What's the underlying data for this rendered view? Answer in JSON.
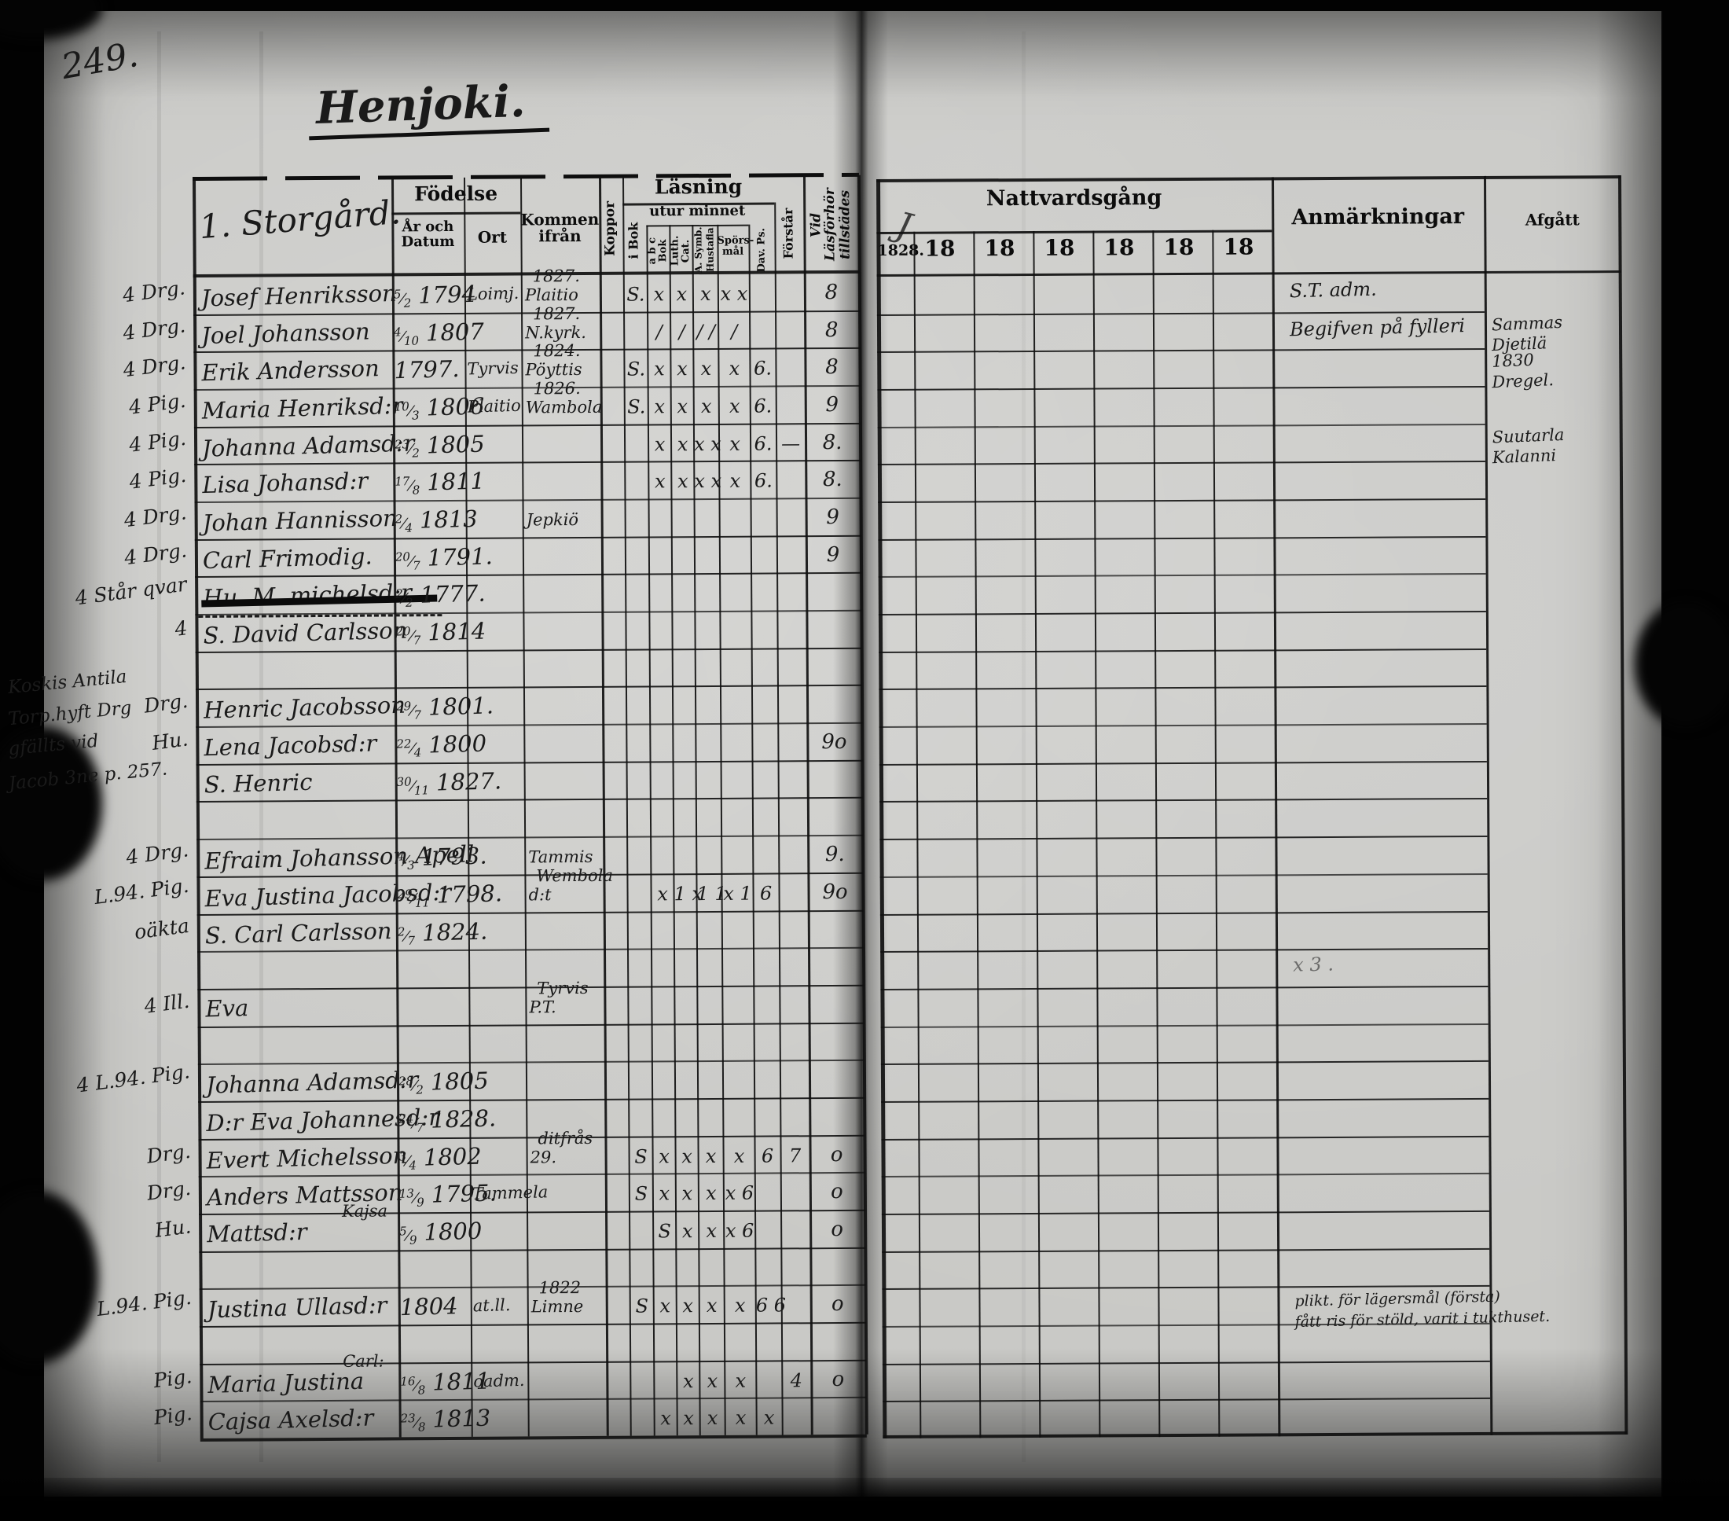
{
  "page": {
    "number": "249.",
    "title": "Henjoki."
  },
  "left_table": {
    "estate": "1. Storgård.",
    "h": {
      "fodelse": "Födelse",
      "ar": "År och",
      "datum": "Datum",
      "ort": "Ort",
      "kommen1": "Kommen",
      "kommen2": "ifrån",
      "koppor": "Koppor",
      "lasning": "Läsning",
      "utur": "utur minnet",
      "ibok": "i Bok",
      "abc": "a b c Bok",
      "luth": "Luth. Cat.",
      "symb1": "A. Symb.",
      "symb2": "Hustafla",
      "spors1": "Spörs-",
      "spors2": "mål",
      "dav": "Dav. Ps.",
      "forstar": "Förstår",
      "tillst1": "Vid Läsförhör",
      "tillst2": "tillstädes"
    }
  },
  "right_table": {
    "nattvardsgang": "Nattvardsgång",
    "years": [
      "1828.",
      "18",
      "18",
      "18",
      "18",
      "18",
      "18"
    ],
    "anmarkningar": "Anmärkningar",
    "afgatt": "Afgått",
    "flourish": "J"
  },
  "margin_note": {
    "lines": [
      "Koskis Antila",
      "Torp.hyft Drg",
      "gfällts vid",
      "Jacob 3ne p. 257."
    ]
  },
  "rows": [
    {
      "r": 1,
      "prefix": "4 Drg.",
      "name": "Josef Henriksson",
      "date": "5/2 1794",
      "ort": "Loimj.",
      "kommen": [
        "1827.",
        "Plaitio"
      ],
      "marks": {
        "ibok": "S.",
        "abc": "x",
        "luth": "x",
        "symb": "x",
        "spors": "x x"
      },
      "tillst": "8",
      "anm": [
        "S.T. adm."
      ]
    },
    {
      "r": 2,
      "prefix": "4 Drg.",
      "name": "Joel Johansson",
      "date": "4/10 1807",
      "kommen": [
        "1827.",
        "N.kyrk."
      ],
      "marks": {
        "abc": "/",
        "luth": "/",
        "symb": "/ /",
        "spors": "/"
      },
      "tillst": "8",
      "anm": [
        "Begifven på fylleri"
      ],
      "afg": [
        "Sammas",
        "Djetilä"
      ]
    },
    {
      "r": 3,
      "prefix": "4 Drg.",
      "name": "Erik Andersson",
      "date": "1797.",
      "ort": "Tyrvis",
      "kommen": [
        "1824.",
        "Pöyttis"
      ],
      "marks": {
        "ibok": "S.",
        "abc": "x",
        "luth": "x",
        "symb": "x",
        "spors": "x",
        "dav": "6."
      },
      "tillst": "8",
      "afg": [
        "1830",
        "Dregel."
      ]
    },
    {
      "r": 4,
      "prefix": "4 Pig.",
      "name": "Maria Henriksd:r",
      "date": "10/3 1806",
      "ort": "Plaitio",
      "kommen": [
        "1826.",
        "Wambola"
      ],
      "marks": {
        "ibok": "S.",
        "abc": "x",
        "luth": "x",
        "symb": "x",
        "spors": "x",
        "dav": "6."
      },
      "tillst": "9"
    },
    {
      "r": 5,
      "prefix": "4 Pig.",
      "name": "Johanna Adamsd:r",
      "date": "23/2 1805",
      "marks": {
        "abc": "x",
        "luth": "x",
        "symb": "x x",
        "spors": "x",
        "dav": "6."
      },
      "forst": "—",
      "tillst": "8.",
      "afg": [
        "Suutarla",
        "Kalanni"
      ]
    },
    {
      "r": 6,
      "prefix": "4 Pig.",
      "name": "Lisa Johansd:r",
      "date": "17/8 1811",
      "marks": {
        "abc": "x",
        "luth": "x",
        "symb": "x x",
        "spors": "x",
        "dav": "6."
      },
      "tillst": "8."
    },
    {
      "r": 7,
      "prefix": "4 Drg.",
      "name": "Johan Hannisson",
      "date": "2/4 1813",
      "kommen": [
        "",
        "Jepkiö"
      ],
      "tillst": "9"
    },
    {
      "r": 8,
      "prefix": "4 Drg.",
      "name": "Carl Frimodig.",
      "date": "20/7 1791.",
      "tillst": "9"
    },
    {
      "r": 9,
      "prefix": "4 Står qvar",
      "name": "Hu. M. michelsd:r",
      "struck": true,
      "date": "2/2 1777."
    },
    {
      "r": 10,
      "prefix": "4",
      "name": "S. David Carlsson",
      "date": "20/7 1814"
    },
    {
      "r": 12,
      "prefix": "Drg.",
      "name": "Henric Jacobsson",
      "date": "29/7 1801."
    },
    {
      "r": 13,
      "prefix": "Hu.",
      "name": "Lena Jacobsd:r",
      "date": "22/4 1800",
      "tillst": "9o"
    },
    {
      "r": 14,
      "name": "S. Henric",
      "date": "30/11 1827."
    },
    {
      "r": 16,
      "prefix": "4 Drg.",
      "name": "Efraim Johansson Apell",
      "date": "4/3 1793.",
      "kommen": [
        "",
        "Tammis"
      ],
      "tillst": "9."
    },
    {
      "r": 17,
      "prefix": "L.94. Pig.",
      "name": "Eva Justina Jacobsd:r",
      "date": "29/11 1798.",
      "kommen": [
        "Wembola",
        "d:t"
      ],
      "marks": {
        "abc": "x",
        "luth": "1 x",
        "symb": "1 1",
        "spors": "x 1",
        "dav": "6"
      },
      "tillst": "9o"
    },
    {
      "r": 18,
      "prefix": "oäkta",
      "name": "S. Carl Carlsson",
      "date": "2/7 1824."
    },
    {
      "r": 19,
      "faint": true,
      "anm": [
        "x 3 ."
      ]
    },
    {
      "r": 20,
      "prefix": "4 Ill.",
      "name": "Eva",
      "kommen": [
        "Tyrvis",
        "P.T."
      ]
    },
    {
      "r": 22,
      "prefix": "4 L.94. Pig.",
      "name": "Johanna Adamsd:r",
      "date": "28/2 1805"
    },
    {
      "r": 23,
      "name": "D:r Eva Johannesd:r",
      "date": "24/7 1828."
    },
    {
      "r": 24,
      "prefix": "Drg.",
      "name": "Evert Michelsson",
      "date": "3/4 1802",
      "kommen": [
        "ditfrås",
        "29."
      ],
      "marks": {
        "ibok": "S",
        "abc": "x",
        "luth": "x",
        "symb": "x",
        "spors": "x",
        "dav": "6"
      },
      "forst": "7",
      "tillst": "o"
    },
    {
      "r": 25,
      "prefix": "Drg.",
      "name": "Anders Mattsson",
      "date": "13/9 1795.",
      "ort": "Tammela",
      "marks": {
        "ibok": "S",
        "abc": "x",
        "luth": "x",
        "symb": "x",
        "spors": "x 6"
      },
      "tillst": "o"
    },
    {
      "r": 26,
      "prefix": "Hu.",
      "name": "Mattsd:r",
      "super": "Kajsa",
      "date": "5/9 1800",
      "marks": {
        "abc": "S",
        "luth": "x",
        "symb": "x",
        "spors": "x 6"
      },
      "tillst": "o"
    },
    {
      "r": 28,
      "prefix": "L.94. Pig.",
      "name": "Justina Ullasd:r",
      "date": "1804",
      "ort": "at.ll.",
      "kommen": [
        "1822",
        "Limne"
      ],
      "marks": {
        "ibok": "S",
        "abc": "x",
        "luth": "x",
        "symb": "x",
        "spors": "x",
        "dav": "6 6"
      },
      "tillst": "o",
      "anm": [
        "plikt. för lägersmål (första)",
        "fått ris för stöld, varit i tukthuset."
      ]
    },
    {
      "r": 30,
      "prefix": "Pig.",
      "name": "Maria Justina",
      "super": "Carl:",
      "date": "16/8 1811",
      "ort": "oadm.",
      "marks": {
        "luth": "x",
        "symb": "x",
        "spors": "x"
      },
      "forst": "4",
      "tillst": "o"
    },
    {
      "r": 31,
      "prefix": "Pig.",
      "name": "Cajsa Axelsd:r",
      "date": "23/8 1813",
      "marks": {
        "abc": "x",
        "luth": "x",
        "symb": "x",
        "spors": "x",
        "dav": "x"
      }
    }
  ]
}
